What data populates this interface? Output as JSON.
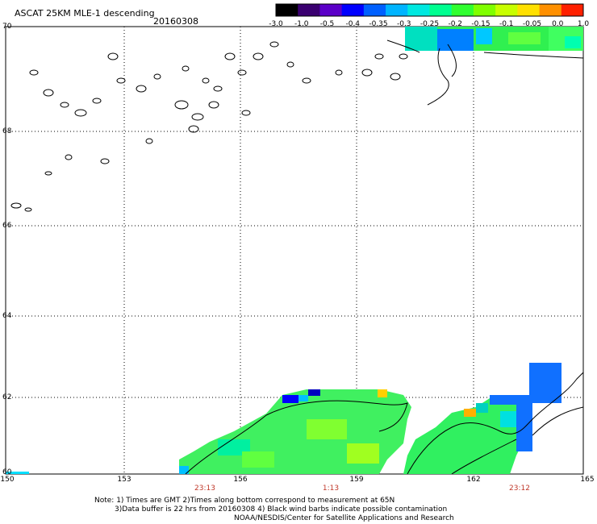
{
  "header": {
    "title": "ASCAT 25KM MLE-1 descending",
    "date": "20160308"
  },
  "colorbar": {
    "ticks": [
      "-3.0",
      "-1.0",
      "-0.5",
      "-0.4",
      "-0.35",
      "-0.3",
      "-0.25",
      "-0.2",
      "-0.15",
      "-0.1",
      "-0.05",
      "0.0",
      "1.0"
    ],
    "colors": [
      "#000000",
      "#3a0070",
      "#5b00c8",
      "#0000ff",
      "#0060ff",
      "#00b4ff",
      "#00e8e0",
      "#00ff90",
      "#30ff30",
      "#80ff00",
      "#c8ff00",
      "#ffe000",
      "#ff9000",
      "#ff2000"
    ]
  },
  "axes": {
    "lat_labels": [
      "70",
      "68",
      "66",
      "64",
      "62",
      "60"
    ],
    "lon_labels": [
      "150",
      "153",
      "156",
      "159",
      "162",
      "165"
    ]
  },
  "times": [
    "23:13",
    "1:13",
    "23:12"
  ],
  "notes": {
    "line1": "Note: 1) Times are GMT 2)Times along bottom correspond to measurement at 65N",
    "line2": "3)Data buffer is 22 hrs from 20160308 4) Black wind barbs indicate possible contamination",
    "line3": "NOAA/NESDIS/Center for Satellite Applications and Research"
  }
}
